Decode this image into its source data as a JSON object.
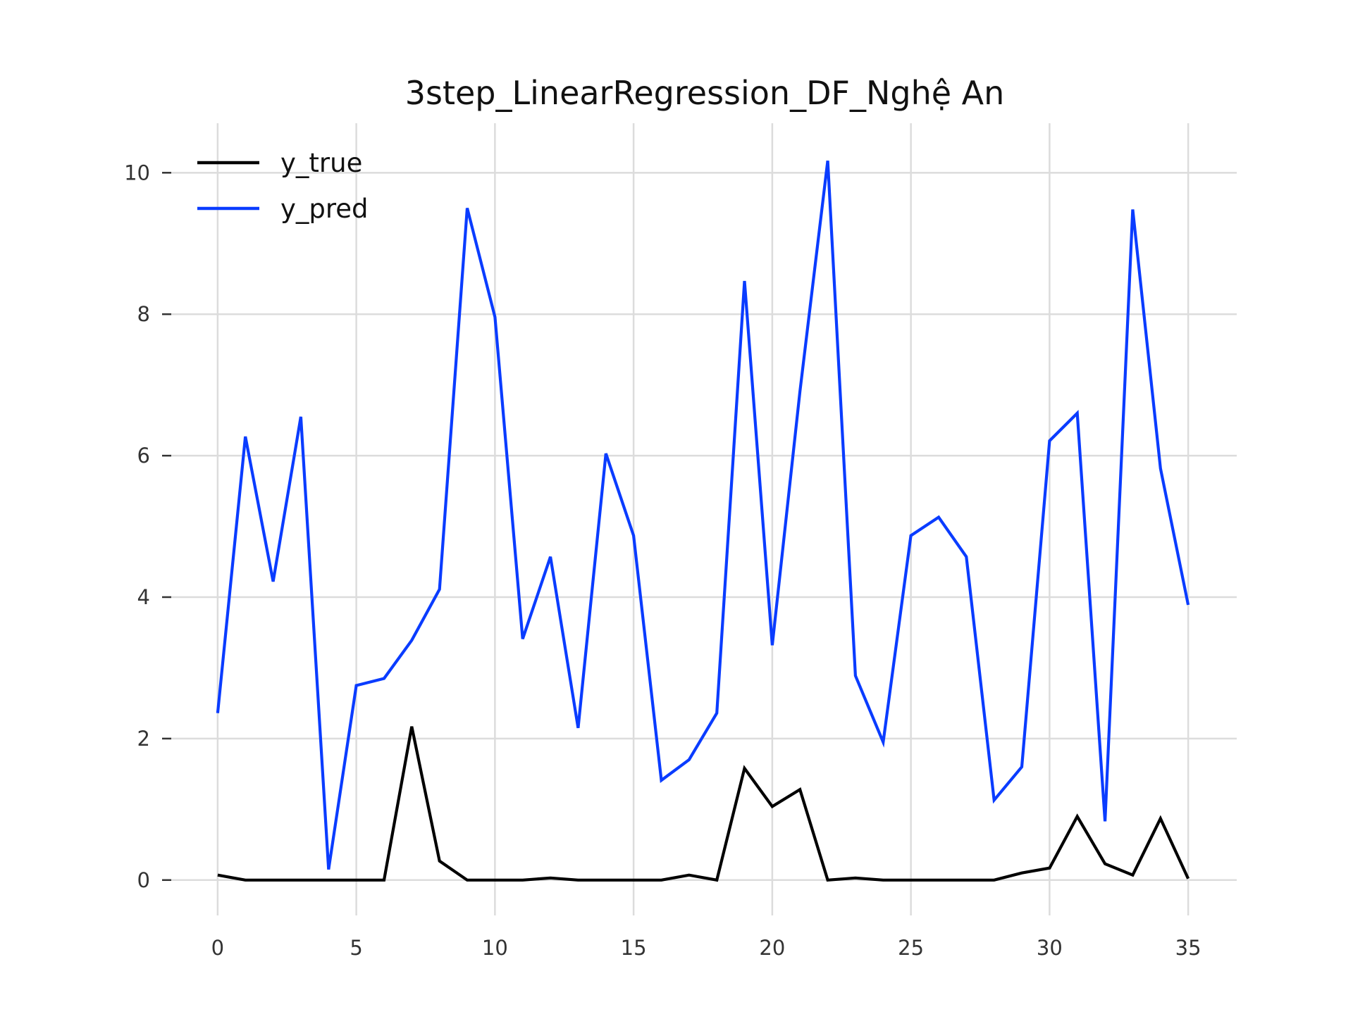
{
  "chart_data": {
    "type": "line",
    "title": "3step_LinearRegression_DF_Nghệ An",
    "xlabel": "",
    "ylabel": "",
    "xlim": [
      -1.75,
      36.75
    ],
    "ylim": [
      -0.5,
      10.7
    ],
    "xticks": [
      0,
      5,
      10,
      15,
      20,
      25,
      30,
      35
    ],
    "yticks": [
      0,
      2,
      4,
      6,
      8,
      10
    ],
    "grid": true,
    "legend": "top-left",
    "x": [
      0,
      1,
      2,
      3,
      4,
      5,
      6,
      7,
      8,
      9,
      10,
      11,
      12,
      13,
      14,
      15,
      16,
      17,
      18,
      19,
      20,
      21,
      22,
      23,
      24,
      25,
      26,
      27,
      28,
      29,
      30,
      31,
      32,
      33,
      34,
      35
    ],
    "series": [
      {
        "name": "y_true",
        "color": "#000000",
        "values": [
          0.07,
          0,
          0,
          0,
          0,
          0,
          0,
          2.17,
          0.27,
          0,
          0,
          0,
          0.03,
          0,
          0,
          0,
          0,
          0.07,
          0,
          1.58,
          1.04,
          1.28,
          0,
          0.03,
          0,
          0,
          0,
          0,
          0,
          0.1,
          0.17,
          0.9,
          0.23,
          0.07,
          0.87,
          0.02
        ]
      },
      {
        "name": "y_pred",
        "color": "#0a3cff",
        "values": [
          2.36,
          6.27,
          4.22,
          6.55,
          0.15,
          2.75,
          2.85,
          3.39,
          4.11,
          9.5,
          7.96,
          3.41,
          4.57,
          2.15,
          6.03,
          4.87,
          1.41,
          1.7,
          2.36,
          8.47,
          3.32,
          6.91,
          10.17,
          2.89,
          1.95,
          4.87,
          5.13,
          4.57,
          1.13,
          1.6,
          6.21,
          6.6,
          0.83,
          9.48,
          5.82,
          3.89
        ]
      }
    ]
  }
}
